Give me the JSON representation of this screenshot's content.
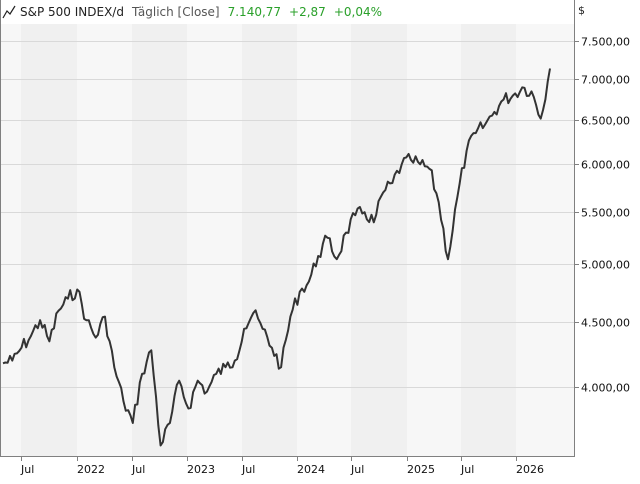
{
  "header": {
    "icon": "line-chart-icon",
    "symbol": "S&P 500 INDEX/d",
    "period": "Täglich [Close]",
    "last": "7.140,77",
    "change": "+2,87",
    "change_pct": "+0,04%"
  },
  "currency": "$",
  "colors": {
    "line": "#333333",
    "positive": "#2aa02a",
    "band_light": "#f7f7f7",
    "band_dark": "#f0f0f0",
    "grid": "#d9d9d9",
    "axis": "#808080"
  },
  "chart_data": {
    "type": "line",
    "title": "S&P 500 INDEX/d Täglich [Close]",
    "xlabel": "",
    "ylabel": "$",
    "y_scale": "log",
    "ylim": [
      3550,
      7800
    ],
    "grid": true,
    "legend_position": "none",
    "x_ticks": [
      "Jul",
      "2022",
      "Jul",
      "2023",
      "Jul",
      "2024",
      "Jul",
      "2025",
      "Jul",
      "2026"
    ],
    "y_ticks": [
      "4.000,00",
      "4.500,00",
      "5.000,00",
      "5.500,00",
      "6.000,00",
      "6.500,00",
      "7.000,00",
      "7.500,00"
    ],
    "series": [
      {
        "name": "S&P 500 Close",
        "x": [
          "2021-04",
          "2021-05",
          "2021-06",
          "2021-07",
          "2021-08",
          "2021-09",
          "2021-10",
          "2021-11",
          "2021-12",
          "2022-01",
          "2022-02",
          "2022-03",
          "2022-04",
          "2022-05",
          "2022-06",
          "2022-07",
          "2022-08",
          "2022-09",
          "2022-10",
          "2022-11",
          "2022-12",
          "2023-01",
          "2023-02",
          "2023-03",
          "2023-04",
          "2023-05",
          "2023-06",
          "2023-07",
          "2023-08",
          "2023-09",
          "2023-10",
          "2023-11",
          "2023-12",
          "2024-01",
          "2024-02",
          "2024-03",
          "2024-04",
          "2024-05",
          "2024-06",
          "2024-07",
          "2024-08",
          "2024-09",
          "2024-10",
          "2024-11",
          "2024-12",
          "2025-01",
          "2025-02",
          "2025-03",
          "2025-04",
          "2025-05",
          "2025-06",
          "2025-07",
          "2025-08",
          "2025-09",
          "2025-10",
          "2025-11",
          "2025-12",
          "2026-01",
          "2026-02",
          "2026-03"
        ],
        "values": [
          4180,
          4200,
          4300,
          4390,
          4520,
          4350,
          4600,
          4700,
          4780,
          4520,
          4380,
          4550,
          4150,
          3900,
          3750,
          4100,
          4280,
          3600,
          3750,
          4050,
          3850,
          4050,
          3970,
          4100,
          4150,
          4200,
          4450,
          4580,
          4450,
          4300,
          4150,
          4550,
          4760,
          4850,
          5080,
          5250,
          5050,
          5300,
          5470,
          5500,
          5400,
          5700,
          5800,
          6000,
          6050,
          6000,
          5950,
          5600,
          5050,
          5650,
          6150,
          6350,
          6450,
          6600,
          6750,
          6800,
          6900,
          6850,
          6520,
          7141
        ]
      }
    ]
  }
}
